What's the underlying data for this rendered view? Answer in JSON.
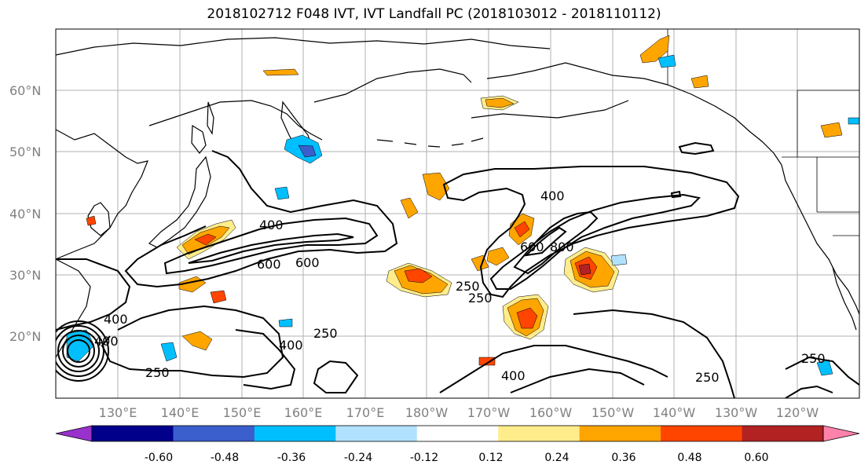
{
  "title": "2018102712 F048 IVT, IVT Landfall PC (2018103012 - 2018110112)",
  "latitude_labels": [
    "60°N",
    "50°N",
    "40°N",
    "30°N",
    "20°N"
  ],
  "longitude_labels": [
    "130°E",
    "140°E",
    "150°E",
    "160°E",
    "170°E",
    "180°W",
    "170°W",
    "160°W",
    "150°W",
    "140°W",
    "130°W",
    "120°W"
  ],
  "contour_labels": [
    "400",
    "600",
    "600",
    "400",
    "400",
    "250",
    "250",
    "400",
    "250",
    "400",
    "600",
    "800",
    "250",
    "400",
    "250",
    "250"
  ],
  "colorbar": {
    "tick_labels": [
      "-0.60",
      "-0.48",
      "-0.36",
      "-0.24",
      "-0.12",
      "0.12",
      "0.24",
      "0.36",
      "0.48",
      "0.60"
    ],
    "colors": [
      "#9932cc",
      "#00008b",
      "#3a5fcd",
      "#00bfff",
      "#b0e2ff",
      "#ffffff",
      "#ffec8b",
      "#ffa500",
      "#ff4500",
      "#b22222",
      "#ff82ab"
    ]
  }
}
